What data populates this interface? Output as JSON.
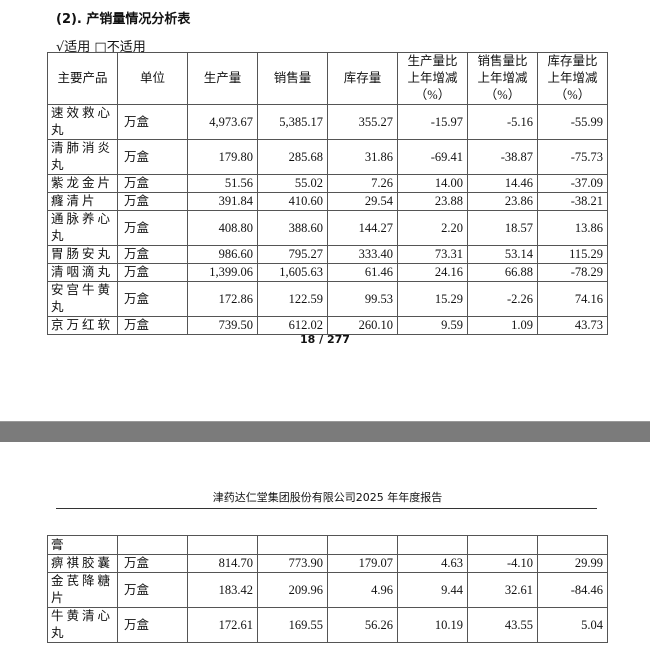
{
  "section_title": "(2). 产销量情况分析表",
  "applicability": "√适用 □不适用",
  "table": {
    "headers": [
      "主要产品",
      "单位",
      "生产量",
      "销售量",
      "库存量",
      "生产量比上年增减（%）",
      "销售量比上年增减（%）",
      "库存量比上年增减（%）"
    ],
    "rows_page1": [
      [
        "速效救心丸",
        "万盒",
        "4,973.67",
        "5,385.17",
        "355.27",
        "-15.97",
        "-5.16",
        "-55.99"
      ],
      [
        "清肺消炎丸",
        "万盒",
        "179.80",
        "285.68",
        "31.86",
        "-69.41",
        "-38.87",
        "-75.73"
      ],
      [
        "紫龙金片",
        "万盒",
        "51.56",
        "55.02",
        "7.26",
        "14.00",
        "14.46",
        "-37.09"
      ],
      [
        "癃清片",
        "万盒",
        "391.84",
        "410.60",
        "29.54",
        "23.88",
        "23.86",
        "-38.21"
      ],
      [
        "通脉养心丸",
        "万盒",
        "408.80",
        "388.60",
        "144.27",
        "2.20",
        "18.57",
        "13.86"
      ],
      [
        "胃肠安丸",
        "万盒",
        "986.60",
        "795.27",
        "333.40",
        "73.31",
        "53.14",
        "115.29"
      ],
      [
        "清咽滴丸",
        "万盒",
        "1,399.06",
        "1,605.63",
        "61.46",
        "24.16",
        "66.88",
        "-78.29"
      ],
      [
        "安宫牛黄丸",
        "万盒",
        "172.86",
        "122.59",
        "99.53",
        "15.29",
        "-2.26",
        "74.16"
      ],
      [
        "京万红软",
        "万盒",
        "739.50",
        "612.02",
        "260.10",
        "9.59",
        "1.09",
        "43.73"
      ]
    ],
    "rows_page2": [
      [
        "膏",
        "",
        "",
        "",
        "",
        "",
        "",
        ""
      ],
      [
        "痹祺胶囊",
        "万盒",
        "814.70",
        "773.90",
        "179.07",
        "4.63",
        "-4.10",
        "29.99"
      ],
      [
        "金芪降糖片",
        "万盒",
        "183.42",
        "209.96",
        "4.96",
        "9.44",
        "32.61",
        "-84.46"
      ],
      [
        "牛黄清心丸",
        "万盒",
        "172.61",
        "169.55",
        "56.26",
        "10.19",
        "43.55",
        "5.04"
      ]
    ]
  },
  "page_number": "18 / 277",
  "running_header": "津药达仁堂集团股份有限公司2025 年年度报告"
}
